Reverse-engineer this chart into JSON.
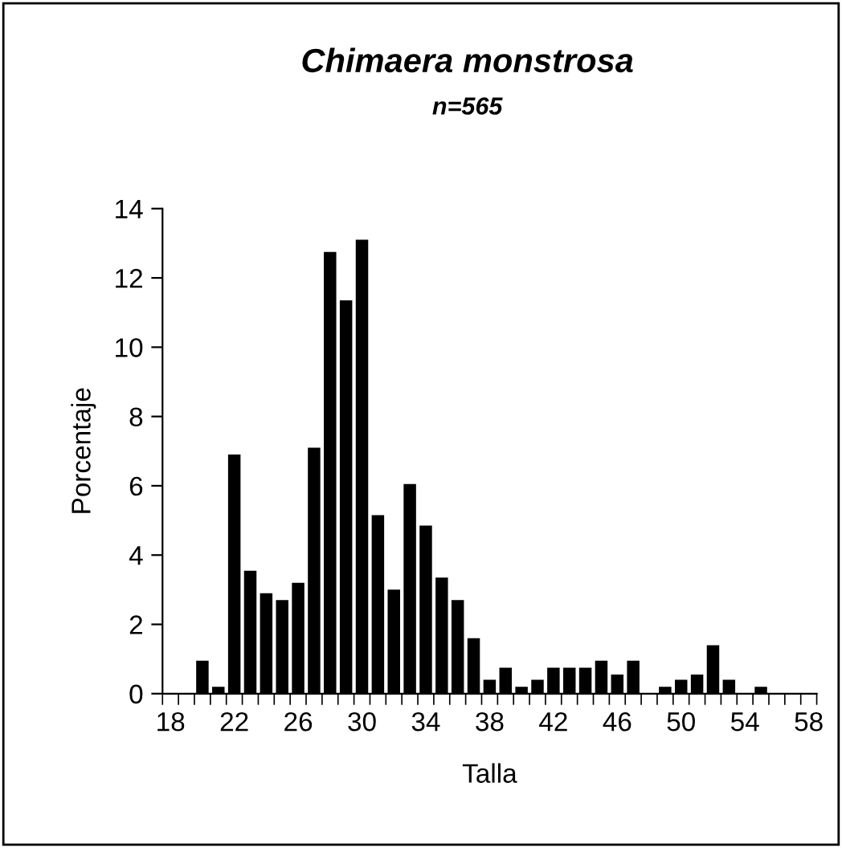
{
  "chart_data": {
    "type": "bar",
    "title": "Chimaera monstrosa",
    "subtitle": "n=565",
    "xlabel": "Talla",
    "ylabel": "Porcentaje",
    "categories": [
      "18",
      null,
      null,
      null,
      "22",
      null,
      null,
      null,
      "26",
      null,
      null,
      null,
      "30",
      null,
      null,
      null,
      "34",
      null,
      null,
      null,
      "38",
      null,
      null,
      null,
      "42",
      null,
      null,
      null,
      "46",
      null,
      null,
      null,
      "50",
      null,
      null,
      null,
      "54",
      null,
      null,
      null,
      "58"
    ],
    "values": [
      0,
      0,
      0.95,
      0.2,
      6.9,
      3.55,
      2.9,
      2.7,
      3.2,
      7.1,
      12.75,
      11.35,
      13.1,
      5.15,
      3.0,
      6.05,
      4.85,
      3.35,
      2.7,
      1.6,
      0.4,
      0.75,
      0.2,
      0.4,
      0.75,
      0.75,
      0.75,
      0.95,
      0.55,
      0.95,
      0,
      0.2,
      0.4,
      0.55,
      1.4,
      0.4,
      0,
      0.2,
      0,
      0,
      0
    ],
    "color": "#000000",
    "ylim": [
      0,
      14
    ],
    "yticks": [
      0,
      2,
      4,
      6,
      8,
      10,
      12,
      14
    ],
    "grid": false,
    "legend": false
  }
}
